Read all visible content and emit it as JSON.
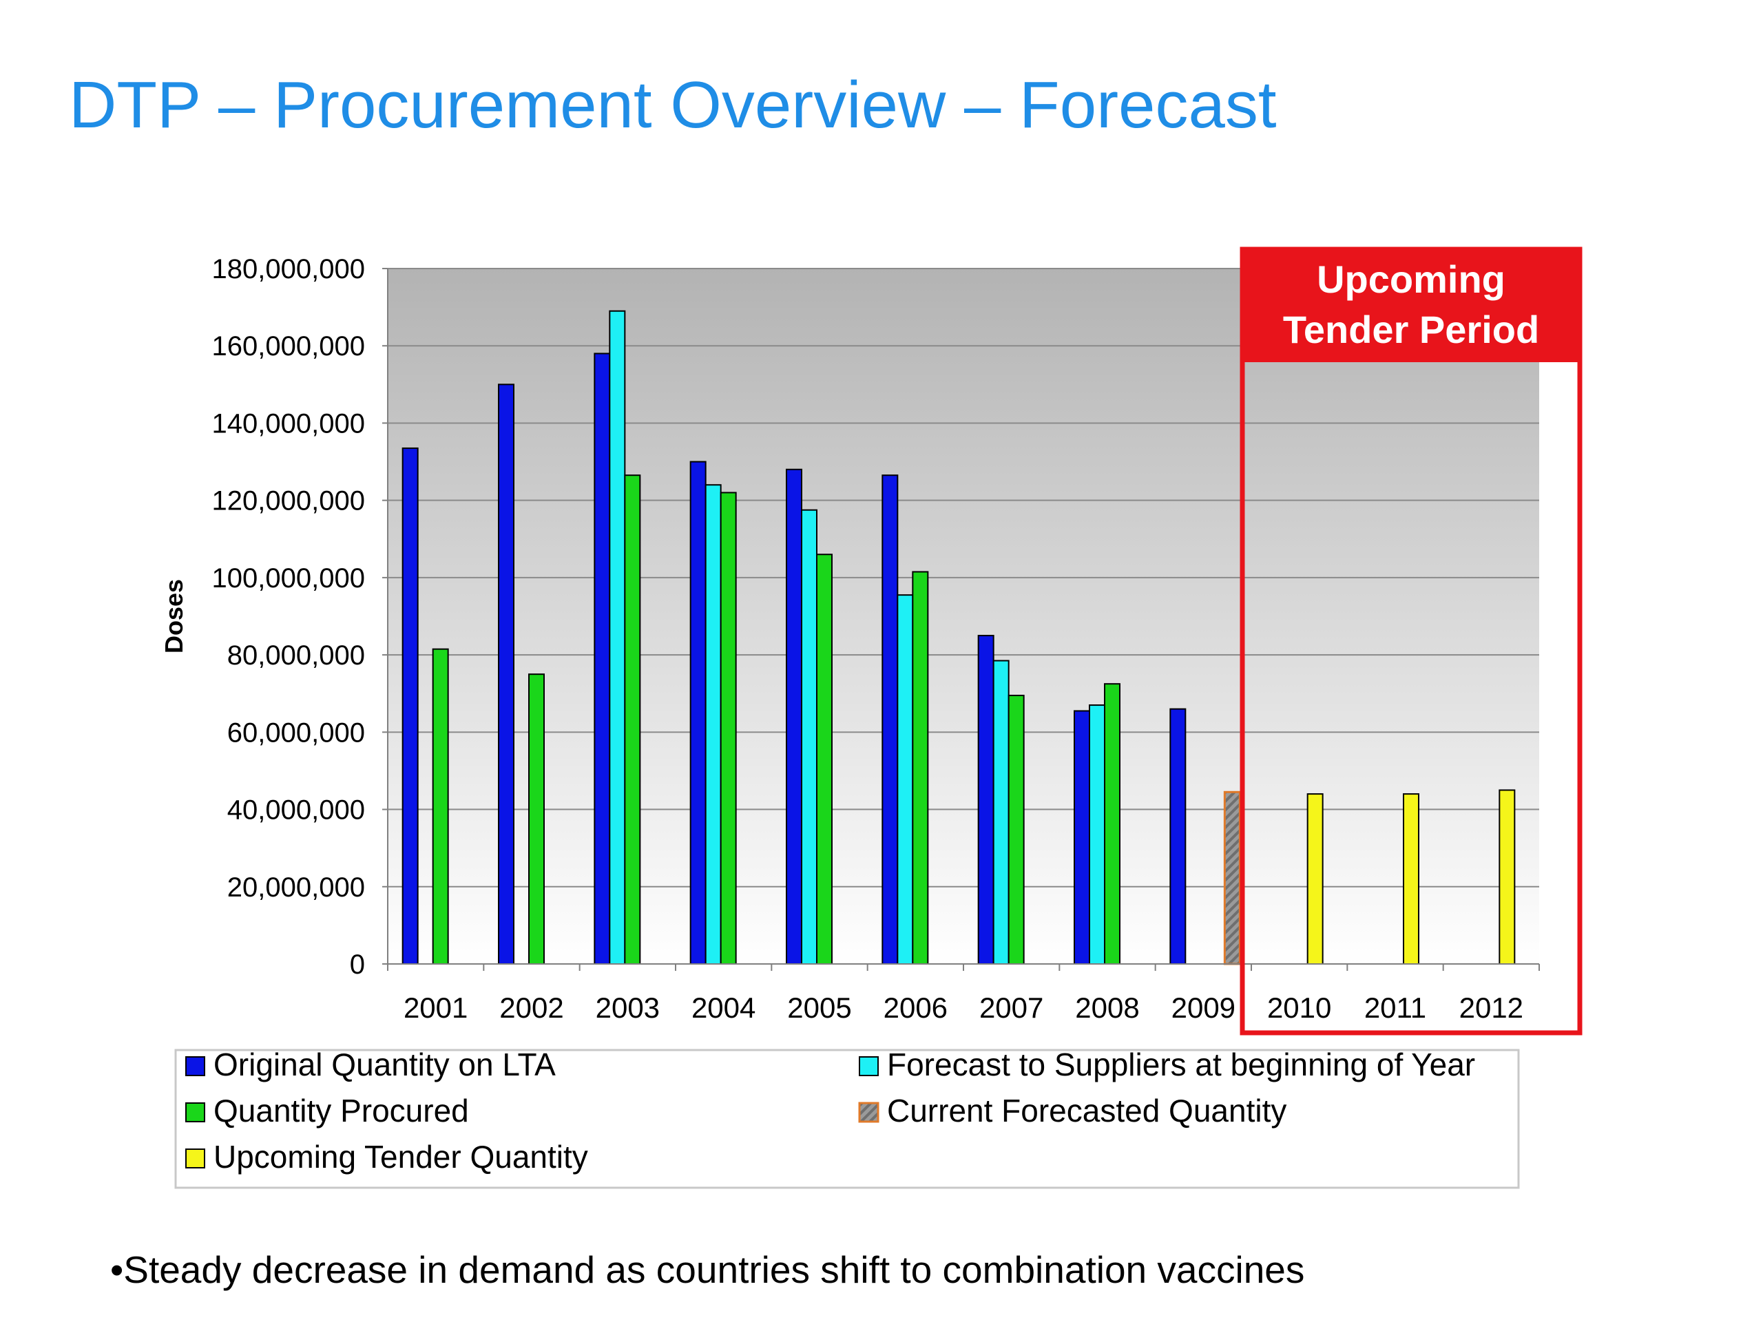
{
  "slide": {
    "title": "DTP – Procurement Overview – Forecast",
    "bullet": "•Steady decrease in demand as countries shift to combination vaccines"
  },
  "highlight": {
    "label_line1": "Upcoming",
    "label_line2": "Tender Period",
    "color": "#e8141b"
  },
  "chart_data": {
    "type": "bar",
    "title": "",
    "xlabel": "",
    "ylabel": "Doses",
    "ylim": [
      0,
      180000000
    ],
    "yticks": [
      0,
      20000000,
      40000000,
      60000000,
      80000000,
      100000000,
      120000000,
      140000000,
      160000000,
      180000000
    ],
    "ytick_labels": [
      "0",
      "20,000,000",
      "40,000,000",
      "60,000,000",
      "80,000,000",
      "100,000,000",
      "120,000,000",
      "140,000,000",
      "160,000,000",
      "180,000,000"
    ],
    "grid": true,
    "legend_position": "bottom",
    "categories": [
      "2001",
      "2002",
      "2003",
      "2004",
      "2005",
      "2006",
      "2007",
      "2008",
      "2009",
      "2010",
      "2011",
      "2012"
    ],
    "series": [
      {
        "name": "Original Quantity on LTA",
        "color": "#0a14e6",
        "values": [
          133500000,
          150000000,
          158000000,
          130000000,
          128000000,
          126500000,
          85000000,
          65500000,
          66000000,
          null,
          null,
          null
        ]
      },
      {
        "name": "Forecast to Suppliers at beginning of Year",
        "color": "#1ef0f5",
        "values": [
          null,
          null,
          169000000,
          124000000,
          117500000,
          95500000,
          78500000,
          67000000,
          null,
          null,
          null,
          null
        ]
      },
      {
        "name": "Quantity Procured",
        "color": "#1ad61a",
        "values": [
          81500000,
          75000000,
          126500000,
          122000000,
          106000000,
          101500000,
          69500000,
          72500000,
          null,
          null,
          null,
          null
        ]
      },
      {
        "name": "Current Forecasted Quantity",
        "color": "#8c8c8c",
        "edge_color": "#e07a2a",
        "pattern": "striped",
        "values": [
          null,
          null,
          null,
          null,
          null,
          null,
          null,
          null,
          44500000,
          null,
          null,
          null
        ]
      },
      {
        "name": "Upcoming Tender Quantity",
        "color": "#f5f51a",
        "values": [
          null,
          null,
          null,
          null,
          null,
          null,
          null,
          null,
          null,
          44000000,
          44000000,
          45000000
        ]
      }
    ],
    "legend_order": [
      0,
      1,
      2,
      3,
      4
    ]
  }
}
